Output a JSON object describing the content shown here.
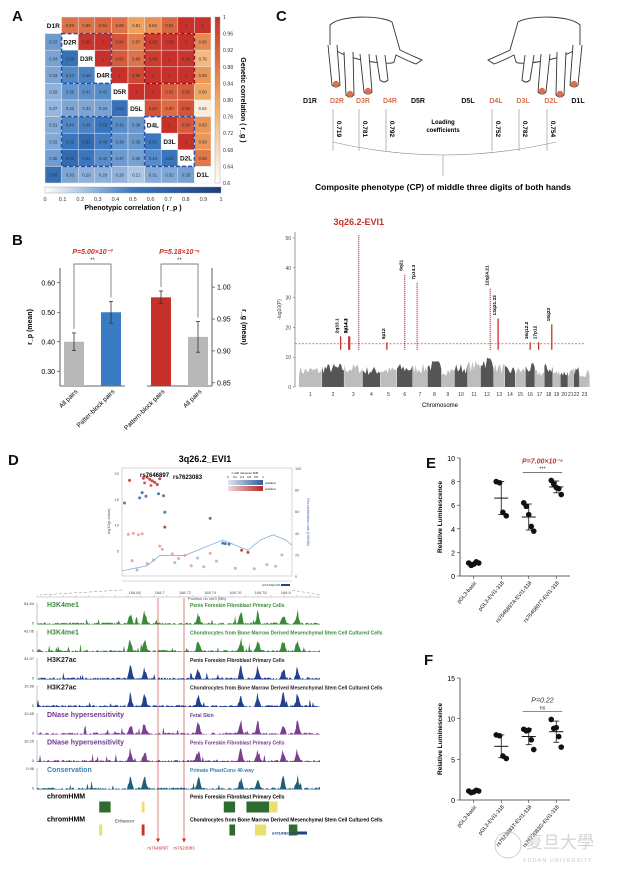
{
  "panels": {
    "A": "A",
    "B": "B",
    "C": "C",
    "D": "D",
    "E": "E",
    "F": "F"
  },
  "chart_data": [
    {
      "id": "A",
      "type": "heatmap",
      "labels": [
        "D1R",
        "D2R",
        "D3R",
        "D4R",
        "D5R",
        "D5L",
        "D4L",
        "D3L",
        "D2L",
        "D1L"
      ],
      "upper_title": "Genetic correlation ( r_g )",
      "lower_title": "Phenotypic correlation ( r_p )",
      "genetic_colorbar": {
        "range": [
          0.6,
          1
        ],
        "ticks": [
          "1",
          "0.96",
          "0.92",
          "0.88",
          "0.84",
          "0.80",
          "0.76",
          "0.72",
          "0.68",
          "0.64",
          "0.6"
        ],
        "colors": [
          "#ffffff",
          "#f0a860",
          "#c8302a"
        ]
      },
      "phenotypic_colorbar": {
        "range": [
          0,
          1
        ],
        "ticks": [
          "0",
          "0.1",
          "0.2",
          "0.3",
          "0.4",
          "0.5",
          "0.6",
          "0.7",
          "0.8",
          "0.9",
          "1"
        ],
        "colors": [
          "#ffffff",
          "#3a78c0",
          "#1a3f78"
        ]
      },
      "matrix": [
        [
          null,
          0.89,
          0.89,
          0.91,
          0.89,
          0.81,
          0.84,
          0.91,
          1,
          1
        ],
        [
          0.37,
          null,
          0.99,
          1,
          0.94,
          0.87,
          0.98,
          0.99,
          1,
          0.85
        ],
        [
          0.34,
          0.55,
          null,
          1,
          0.93,
          0.89,
          0.98,
          1,
          0.99,
          0.76
        ],
        [
          0.33,
          0.44,
          0.46,
          null,
          1,
          0.96,
          1,
          1,
          1,
          0.83
        ],
        [
          0.29,
          0.39,
          0.41,
          0.42,
          null,
          1,
          1,
          0.92,
          0.93,
          0.8
        ],
        [
          0.27,
          0.33,
          0.33,
          0.34,
          0.55,
          null,
          0.94,
          0.9,
          0.94,
          0.64
        ],
        [
          0.31,
          0.44,
          0.46,
          0.53,
          0.42,
          0.38,
          null,
          1,
          0.93,
          0.83
        ],
        [
          0.32,
          0.52,
          0.61,
          0.48,
          0.39,
          0.38,
          0.51,
          null,
          1,
          0.83
        ],
        [
          0.36,
          0.61,
          0.51,
          0.42,
          0.37,
          0.35,
          0.43,
          0.53,
          null,
          0.88
        ],
        [
          0.58,
          0.33,
          0.29,
          0.29,
          0.28,
          0.21,
          0.31,
          0.32,
          0.35,
          null
        ]
      ]
    },
    {
      "id": "B",
      "type": "bar",
      "groups": [
        {
          "ylabel": "r_p (mean)",
          "ylim": [
            0.25,
            0.65
          ],
          "yticks": [
            "0.30",
            "0.40",
            "0.50",
            "0.60"
          ],
          "categories": [
            "All pairs",
            "Patter-block pairs"
          ],
          "values": [
            0.4,
            0.5
          ],
          "errors": [
            0.03,
            0.037
          ],
          "colors": [
            "#b8b8b8",
            "#3a7cc4"
          ],
          "pvalue": "P=5.00×10⁻³",
          "stars": "**"
        },
        {
          "ylabel": "r_g (mean)",
          "ylim": [
            0.845,
            1.03
          ],
          "yticks": [
            "0.85",
            "0.90",
            "0.95",
            "1.00"
          ],
          "categories": [
            "Pattern-block pairs",
            "All pairs"
          ],
          "values": [
            0.984,
            0.922
          ],
          "errors": [
            0.01,
            0.024
          ],
          "colors": [
            "#c8302a",
            "#b8b8b8"
          ],
          "pvalue": "P=5.18×10⁻⁶",
          "stars": "**"
        }
      ]
    },
    {
      "id": "C",
      "type": "diagram",
      "digits": [
        {
          "label": "D1R",
          "highlight": false
        },
        {
          "label": "D2R",
          "highlight": true,
          "loading": "0.719"
        },
        {
          "label": "D3R",
          "highlight": true,
          "loading": "0.781"
        },
        {
          "label": "D4R",
          "highlight": true,
          "loading": "0.792"
        },
        {
          "label": "D5R",
          "highlight": false
        },
        {
          "label": "D5L",
          "highlight": false
        },
        {
          "label": "D4L",
          "highlight": true,
          "loading": "0.752"
        },
        {
          "label": "D3L",
          "highlight": true,
          "loading": "0.782"
        },
        {
          "label": "D2L",
          "highlight": true,
          "loading": "0.754"
        },
        {
          "label": "D1L",
          "highlight": false
        }
      ],
      "loading_label": [
        "Loading",
        "coefficients"
      ],
      "caption": "Composite phenotype (CP) of middle three digits of both hands",
      "highlight_color": "#d9714e"
    },
    {
      "id": "C-manhattan",
      "type": "scatter",
      "title": "3q26.2-EVI1",
      "xlabel": "Chromosome",
      "ylabel": "-log10(P)",
      "ylim": [
        0,
        52
      ],
      "yticks": [
        0,
        10,
        20,
        30,
        40,
        50
      ],
      "chromosomes": [
        "1",
        "2",
        "3",
        "4",
        "5",
        "6",
        "7",
        "8",
        "9",
        "10",
        "11",
        "12",
        "13",
        "14",
        "15",
        "16",
        "17",
        "18",
        "19",
        "20",
        "21",
        "22",
        "23"
      ],
      "baseline_heights": [
        7,
        8,
        8,
        7,
        7,
        8,
        8,
        9,
        7,
        8,
        9,
        11,
        8,
        7,
        7,
        8,
        6,
        8,
        6,
        6,
        6,
        7,
        6
      ],
      "threshold": 14.5,
      "loci": [
        {
          "label": "2q33.1",
          "chr": 2,
          "pos": 0.85,
          "peak": 17
        },
        {
          "label": "3p14.3",
          "chr": 3,
          "pos": 0.25,
          "peak": 17
        },
        {
          "label": "3p14.1",
          "chr": 3,
          "pos": 0.3,
          "peak": 17
        },
        {
          "label": "3q26.2-EVI1",
          "chr": 3,
          "pos": 0.8,
          "peak": 51
        },
        {
          "label": "5p12",
          "chr": 5,
          "pos": 0.4,
          "peak": 15
        },
        {
          "label": "6q21",
          "chr": 6,
          "pos": 0.5,
          "peak": 38
        },
        {
          "label": "7p14.3",
          "chr": 7,
          "pos": 0.3,
          "peak": 35
        },
        {
          "label": "12q24.21",
          "chr": 12,
          "pos": 0.75,
          "peak": 33
        },
        {
          "label": "13q21.33",
          "chr": 13,
          "pos": 0.4,
          "peak": 23
        },
        {
          "label": "16q12.2",
          "chr": 16,
          "pos": 0.5,
          "peak": 15
        },
        {
          "label": "17p12",
          "chr": 17,
          "pos": 0.4,
          "peak": 15
        },
        {
          "label": "18q23",
          "chr": 18,
          "pos": 0.9,
          "peak": 21
        }
      ],
      "colors": {
        "light": "#bdbdbd",
        "dark": "#555555",
        "hit": "#c8302a"
      }
    },
    {
      "id": "D-regional",
      "type": "scatter",
      "title": "3q26.2_EVI1",
      "xlabel": "Position on chr3 (Mb)",
      "ylabel": "-log10(p-value)",
      "y2label": "Recombination rate (cM/Mb)",
      "xlim": [
        168.67,
        168.805
      ],
      "xticks": [
        "168.68",
        "168.7",
        "168.72",
        "168.74",
        "168.76",
        "168.78",
        "168.8"
      ],
      "ylim": [
        0,
        21
      ],
      "yticks": [
        "5",
        "10",
        "15",
        "20"
      ],
      "y2ticks": [
        "0",
        "20",
        "40",
        "60",
        "80",
        "100"
      ],
      "annotated_snps": [
        "rs7646897",
        "rs7623083"
      ],
      "legend_title": "r² with reference SNP",
      "legend_ticks": [
        "0",
        "0.2",
        "0.4",
        "0.6",
        "0.8",
        "1"
      ],
      "legend_rows": [
        "unlinked",
        "unlinked"
      ],
      "gene_label": "EVI1/MECOM",
      "points": [
        {
          "x": 168.687,
          "y": 19,
          "c": "#c8302a"
        },
        {
          "x": 168.69,
          "y": 19.2,
          "c": "#c8302a"
        },
        {
          "x": 168.692,
          "y": 18.8,
          "c": "#c8302a"
        },
        {
          "x": 168.694,
          "y": 18.5,
          "c": "#c8302a"
        },
        {
          "x": 168.696,
          "y": 18.2,
          "c": "#c8302a"
        },
        {
          "x": 168.698,
          "y": 17.8,
          "c": "#c8302a"
        },
        {
          "x": 168.7,
          "y": 18.9,
          "c": "#c8302a"
        },
        {
          "x": 168.688,
          "y": 18.1,
          "c": "#d65050"
        },
        {
          "x": 168.693,
          "y": 17.6,
          "c": "#d65050"
        },
        {
          "x": 168.676,
          "y": 18.6,
          "c": "#c8302a"
        },
        {
          "x": 168.686,
          "y": 16.2,
          "c": "#3a6fa8"
        },
        {
          "x": 168.689,
          "y": 15.5,
          "c": "#3a6fa8"
        },
        {
          "x": 168.684,
          "y": 15.2,
          "c": "#3a6fa8"
        },
        {
          "x": 168.699,
          "y": 16.0,
          "c": "#3a6fa8"
        },
        {
          "x": 168.703,
          "y": 15.6,
          "c": "#3a6fa8"
        },
        {
          "x": 168.672,
          "y": 14.2,
          "c": "#3a6fa8"
        },
        {
          "x": 168.704,
          "y": 12.4,
          "c": "#3a6fa8"
        },
        {
          "x": 168.704,
          "y": 9.5,
          "c": "#c8302a"
        },
        {
          "x": 168.74,
          "y": 11.2,
          "c": "#3a6fa8"
        },
        {
          "x": 168.675,
          "y": 8.1,
          "c": "#e8a0a0"
        },
        {
          "x": 168.679,
          "y": 8.3,
          "c": "#e8a0a0"
        },
        {
          "x": 168.683,
          "y": 8.0,
          "c": "#e8a0a0"
        },
        {
          "x": 168.686,
          "y": 8.2,
          "c": "#e8a0a0"
        },
        {
          "x": 168.7,
          "y": 5.8,
          "c": "#e8a0a0"
        },
        {
          "x": 168.702,
          "y": 5.2,
          "c": "#e8a0a0"
        },
        {
          "x": 168.71,
          "y": 4.3,
          "c": "#e8a0a0"
        },
        {
          "x": 168.72,
          "y": 4.0,
          "c": "#e8a0a0"
        },
        {
          "x": 168.73,
          "y": 3.5,
          "c": "#9fb8d8"
        },
        {
          "x": 168.75,
          "y": 6.4,
          "c": "#3a6fa8"
        },
        {
          "x": 168.752,
          "y": 6.3,
          "c": "#3a6fa8"
        },
        {
          "x": 168.755,
          "y": 6.2,
          "c": "#3a6fa8"
        },
        {
          "x": 168.765,
          "y": 5.0,
          "c": "#c8302a"
        },
        {
          "x": 168.77,
          "y": 4.6,
          "c": "#c8302a"
        },
        {
          "x": 168.69,
          "y": 2.4,
          "c": "#e8a0a0"
        },
        {
          "x": 168.695,
          "y": 3.1,
          "c": "#9fb8d8"
        },
        {
          "x": 168.712,
          "y": 2.6,
          "c": "#9fb8d8"
        },
        {
          "x": 168.725,
          "y": 2.0,
          "c": "#e8a0a0"
        },
        {
          "x": 168.735,
          "y": 1.8,
          "c": "#9fb8d8"
        },
        {
          "x": 168.745,
          "y": 2.9,
          "c": "#e8a0a0"
        },
        {
          "x": 168.76,
          "y": 1.5,
          "c": "#9fb8d8"
        },
        {
          "x": 168.775,
          "y": 1.4,
          "c": "#e8a0a0"
        },
        {
          "x": 168.785,
          "y": 2.2,
          "c": "#9fb8d8"
        },
        {
          "x": 168.792,
          "y": 1.9,
          "c": "#e8a0a0"
        },
        {
          "x": 168.797,
          "y": 4.1,
          "c": "#e8a0a0"
        },
        {
          "x": 168.715,
          "y": 3.4,
          "c": "#e8a0a0"
        },
        {
          "x": 168.678,
          "y": 3.0,
          "c": "#e8a0a0"
        },
        {
          "x": 168.682,
          "y": 1.2,
          "c": "#9fb8d8"
        },
        {
          "x": 168.74,
          "y": 4.4,
          "c": "#e8a0a0"
        }
      ],
      "recomb": [
        [
          168.67,
          1
        ],
        [
          168.69,
          2
        ],
        [
          168.7,
          4
        ],
        [
          168.72,
          4
        ],
        [
          168.74,
          6
        ],
        [
          168.75,
          7
        ],
        [
          168.76,
          6
        ],
        [
          168.77,
          5
        ],
        [
          168.78,
          7
        ],
        [
          168.79,
          8
        ],
        [
          168.8,
          7
        ],
        [
          168.805,
          6
        ]
      ]
    },
    {
      "id": "D-tracks",
      "type": "area",
      "tracks": [
        {
          "name": "H3K4me1",
          "cell": "Penis Foreskin Fibroblast Primary Cells",
          "max": "54.54",
          "min": "0",
          "color": "#3a8a3a",
          "name_color": "#3a8a3a"
        },
        {
          "name": "H3K4me1",
          "cell": "Chondrocytes from Bone Marrow Derived Mesenchymal Stem Cell Cultured Cells",
          "max": "42.06",
          "min": "0",
          "color": "#3a8a3a",
          "name_color": "#3a8a3a"
        },
        {
          "name": "H3K27ac",
          "cell": "Penis Foreskin Fibroblast Primary Cells",
          "max": "34.37",
          "min": "0",
          "color": "#23418f",
          "name_color": "#222222"
        },
        {
          "name": "H3K27ac",
          "cell": "Chondrocytes from Bone Marrow Derived Mesenchymal Stem Cell Cultured Cells",
          "max": "10.96",
          "min": "0",
          "color": "#23418f",
          "name_color": "#222222"
        },
        {
          "name": "DNase hypersensitivity",
          "cell": "Fetal Skin",
          "max": "12.65",
          "min": "0",
          "color": "#7a3f8f",
          "name_color": "#6a3a8a"
        },
        {
          "name": "DNase hypersensitivity",
          "cell": "Penis Foreskin Fibroblast Primary Cells",
          "max": "16.25",
          "min": "0",
          "color": "#7a3f8f",
          "name_color": "#6a3a8a"
        },
        {
          "name": "Conservation",
          "cell": "Primate PhastCons 46-way",
          "max": "0.96",
          "min": "0",
          "color": "#1f5f7a",
          "name_color": "#3a82b0"
        }
      ],
      "chromhmm": [
        {
          "name": "chromHMM",
          "cell": "Penis Foreskin Fibroblast Primary Cells"
        },
        {
          "name": "chromHMM",
          "cell": "Chondrocytes from Bone Marrow Derived Mesenchymal Stem Cell Cultured Cells"
        }
      ],
      "enhancer_label": "Enhancer",
      "snp_markers": [
        "rs7646897",
        "rs7623083"
      ],
      "gene_label": "EVI1/MECOM"
    },
    {
      "id": "E",
      "type": "scatter",
      "ylabel": "Relative Luminescence",
      "ylim": [
        0,
        10
      ],
      "yticks": [
        "0",
        "2",
        "4",
        "6",
        "8",
        "10"
      ],
      "categories": [
        "pGL3-basic",
        "pGL3-EVI1-318",
        "rs7646897A-EVI1-318",
        "rs7646897T-EVI1-318"
      ],
      "points": [
        [
          1.1,
          0.9,
          1.0,
          1.2,
          1.1
        ],
        [
          8.0,
          7.9,
          5.4,
          5.1
        ],
        [
          6.2,
          5.9,
          5.2,
          4.2,
          3.8
        ],
        [
          8.1,
          7.8,
          7.5,
          7.4,
          6.9
        ]
      ],
      "means": [
        1.05,
        6.6,
        5.0,
        7.55
      ],
      "sds": [
        0.1,
        1.4,
        1.1,
        0.5
      ],
      "comparison": {
        "from": 2,
        "to": 3,
        "pvalue": "P=7.00×10⁻⁴",
        "stars": "***"
      }
    },
    {
      "id": "F",
      "type": "scatter",
      "ylabel": "Relative Luminescence",
      "ylim": [
        0,
        15
      ],
      "yticks": [
        "0",
        "5",
        "10",
        "15"
      ],
      "categories": [
        "pGL3-basic",
        "pGL3-EVI1-318",
        "rs7623083T-EVI1-318",
        "rs7623083G-EVI1-318"
      ],
      "points": [
        [
          1.1,
          0.9,
          1.0,
          1.2,
          1.1
        ],
        [
          8.0,
          7.9,
          5.4,
          5.1
        ],
        [
          8.7,
          8.5,
          8.6,
          7.4,
          6.2
        ],
        [
          9.9,
          8.8,
          8.9,
          7.8,
          6.5
        ]
      ],
      "means": [
        1.05,
        6.6,
        7.8,
        8.4
      ],
      "sds": [
        0.1,
        1.4,
        1.0,
        1.3
      ],
      "comparison": {
        "from": 2,
        "to": 3,
        "pvalue": "P=0.22",
        "stars": "ns"
      }
    }
  ],
  "watermark": {
    "text": "复旦大學",
    "subtext": "FUDAN UNIVERSITY"
  }
}
